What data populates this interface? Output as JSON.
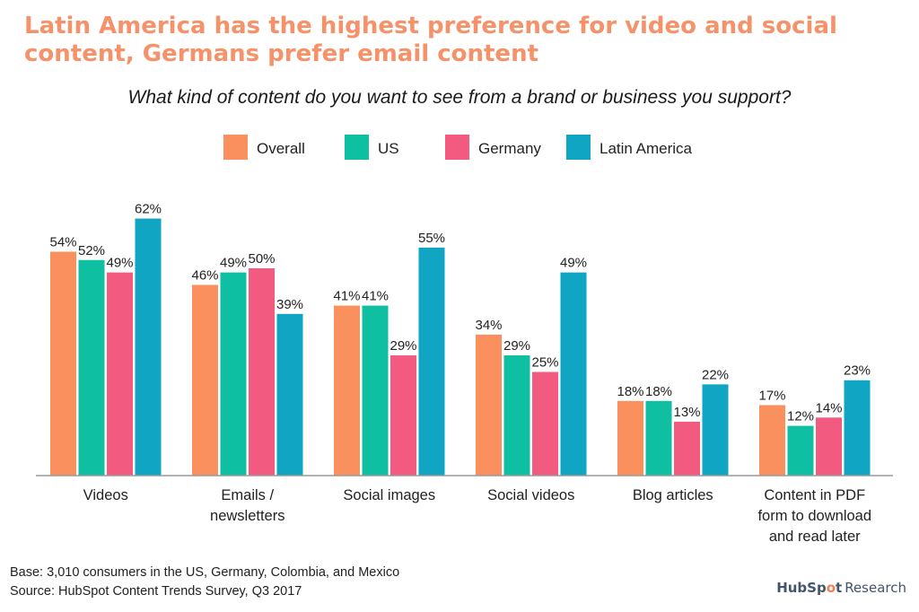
{
  "headline": "Latin America has the highest preference for video and social content, Germans prefer email content",
  "chart_data": {
    "type": "bar",
    "title": "What kind of content do you want to see from a brand or business you support?",
    "categories": [
      [
        "Videos"
      ],
      [
        "Emails /",
        "newsletters"
      ],
      [
        "Social images"
      ],
      [
        "Social videos"
      ],
      [
        "Blog articles"
      ],
      [
        "Content in PDF",
        "form to download",
        "and read later"
      ]
    ],
    "series": [
      {
        "name": "Overall",
        "color": "#f9905e",
        "values": [
          54,
          46,
          41,
          34,
          18,
          17
        ]
      },
      {
        "name": "US",
        "color": "#0fbfa1",
        "values": [
          52,
          49,
          41,
          29,
          18,
          12
        ]
      },
      {
        "name": "Germany",
        "color": "#f25a80",
        "values": [
          49,
          50,
          29,
          25,
          13,
          14
        ]
      },
      {
        "name": "Latin America",
        "color": "#10a5c2",
        "values": [
          62,
          39,
          55,
          49,
          22,
          23
        ]
      }
    ],
    "value_suffix": "%",
    "ylim": [
      0,
      70
    ],
    "grid": false,
    "legend_position": "top-center"
  },
  "footer": {
    "base": "Base: 3,010 consumers in the US, Germany, Colombia, and Mexico",
    "source": "Source: HubSpot Content Trends Survey, Q3 2017"
  },
  "brand": {
    "name_start": "HubSp",
    "name_mark": "o",
    "name_end": "t",
    "suffix": "Research",
    "accent_color": "#f57c50"
  }
}
